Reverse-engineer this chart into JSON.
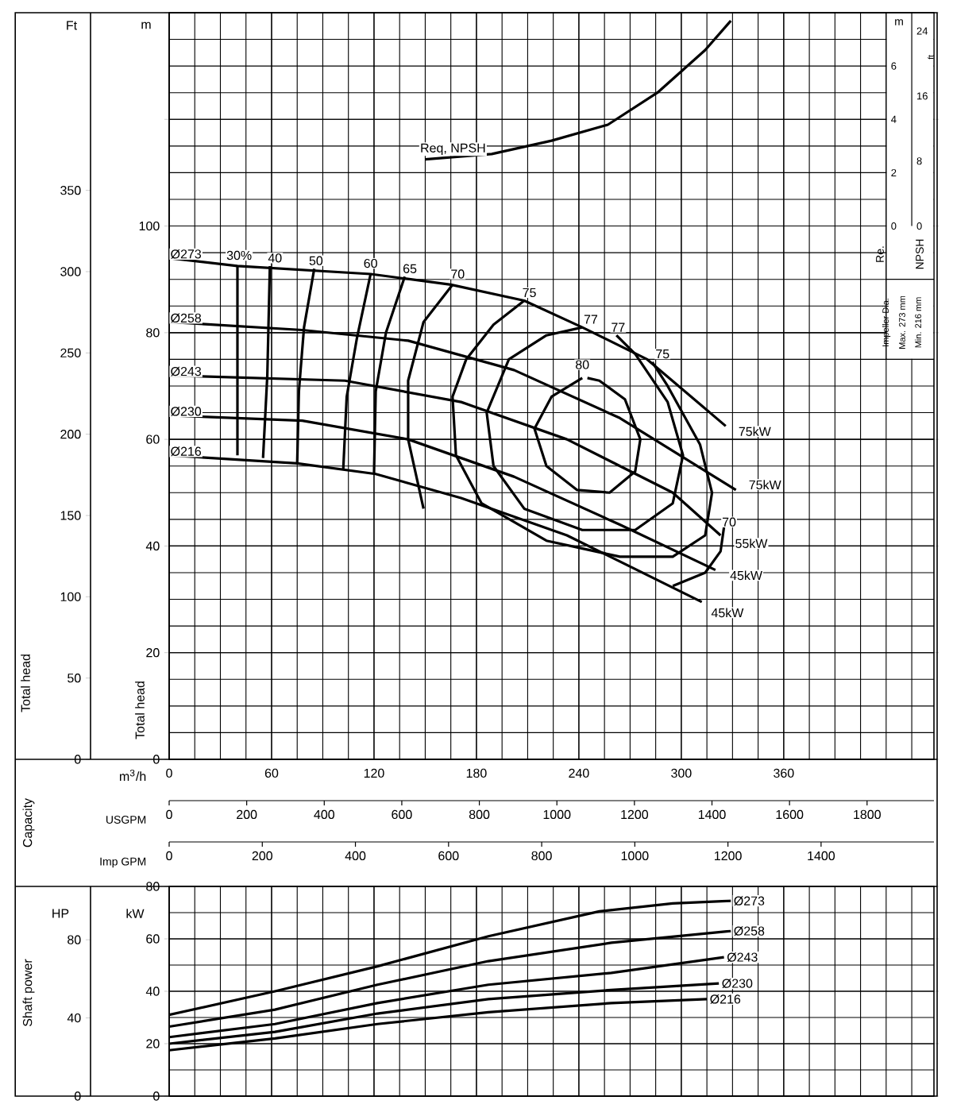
{
  "chart_data": [
    {
      "type": "line",
      "xlabel": "m$^{3}$/h",
      "ylabel": "Total head",
      "y2label": "Total head",
      "xlim": [
        0,
        448
      ],
      "xticks": [
        0,
        60,
        120,
        180,
        240,
        300,
        360
      ],
      "ylim": [
        0,
        140
      ],
      "yticks": [
        0,
        20,
        40,
        60,
        80,
        100,
        {
          "value": 120,
          "label": null
        },
        {
          "value": 140,
          "label": null
        }
      ],
      "y2lim": [
        0,
        459.3
      ],
      "y2ticks": [
        0,
        50,
        100,
        150,
        200,
        250,
        300,
        350
      ],
      "grid": true,
      "x2label": "USGPM",
      "x2lim": [
        0,
        1972.5
      ],
      "x2ticks": [
        0,
        200,
        400,
        600,
        800,
        1000,
        1200,
        1400,
        1600,
        1800
      ],
      "annotations": [
        "Ft",
        "m",
        "Impeller Dia.",
        "Max. 273 mm",
        "Min. 216 mm",
        "Capacity",
        {
          "text": "30%",
          "x": 41,
          "y": 94.5
        },
        {
          "text": "40",
          "x": 62,
          "y": 94
        },
        {
          "text": "50",
          "x": 86,
          "y": 93.5
        },
        {
          "text": "60",
          "x": 118,
          "y": 93
        },
        {
          "text": "65",
          "x": 141,
          "y": 92
        },
        {
          "text": "70",
          "x": 169,
          "y": 91
        },
        {
          "text": "75",
          "x": 211,
          "y": 87.5
        },
        {
          "text": "77",
          "x": 247,
          "y": 82.5
        },
        {
          "text": "77",
          "x": 263,
          "y": 81
        },
        {
          "text": "75",
          "x": 289,
          "y": 76
        },
        {
          "text": "80",
          "x": 242,
          "y": 74
        },
        {
          "text": "70",
          "x": 328,
          "y": 44.5
        },
        {
          "text": "75kW",
          "x": 343,
          "y": 61.5
        },
        {
          "text": "75kW",
          "x": 349,
          "y": 51.5
        },
        {
          "text": "55kW",
          "x": 341,
          "y": 40.5
        },
        {
          "text": "45kW",
          "x": 338,
          "y": 34.5
        },
        {
          "text": "45kW",
          "x": 327,
          "y": 27.5
        }
      ],
      "series": [
        {
          "name": "Ø273",
          "color": "#000000",
          "x": [
            0,
            40,
            118,
            165,
            208,
            242,
            280,
            326
          ],
          "values": [
            94,
            92.5,
            91,
            89,
            86,
            81,
            75,
            62.5
          ]
        },
        {
          "name": "Ø258",
          "color": "#000000",
          "x": [
            0,
            78,
            140,
            202,
            264,
            332
          ],
          "values": [
            82,
            80.5,
            78.5,
            73,
            64,
            50.5
          ]
        },
        {
          "name": "Ø243",
          "color": "#000000",
          "x": [
            0,
            103,
            171,
            233,
            295,
            323
          ],
          "values": [
            72,
            71,
            67,
            60,
            50,
            42
          ]
        },
        {
          "name": "Ø230",
          "color": "#000000",
          "x": [
            0,
            78,
            140,
            202,
            264,
            320
          ],
          "values": [
            64.5,
            63.5,
            60,
            53,
            44,
            35.5
          ]
        },
        {
          "name": "Ø216",
          "color": "#000000",
          "x": [
            0,
            75,
            121,
            171,
            233,
            312
          ],
          "values": [
            57,
            55.5,
            53.5,
            49,
            42,
            29.5
          ]
        },
        {
          "color": "#000000",
          "x": [
            40,
            40
          ],
          "values": [
            92.5,
            57
          ]
        },
        {
          "color": "#000000",
          "x": [
            59,
            57.5,
            55
          ],
          "values": [
            92.5,
            72,
            56.5
          ]
        },
        {
          "color": "#000000",
          "x": [
            85,
            79,
            76,
            75
          ],
          "values": [
            92,
            81,
            69,
            55.5
          ]
        },
        {
          "color": "#000000",
          "x": [
            118,
            110,
            104,
            102
          ],
          "values": [
            91,
            79,
            68,
            54.5
          ]
        },
        {
          "color": "#000000",
          "x": [
            138,
            127,
            121,
            120
          ],
          "values": [
            90.5,
            80,
            69,
            53.5
          ]
        },
        {
          "color": "#000000",
          "x": [
            166,
            149,
            140,
            140,
            149
          ],
          "values": [
            89,
            82,
            71,
            60,
            47
          ]
        },
        {
          "color": "#000000",
          "x": [
            325,
            323,
            314,
            295
          ],
          "values": [
            43.5,
            39,
            35,
            32.5
          ]
        },
        {
          "color": "#000000",
          "x": [
            208,
            190,
            174,
            166,
            168,
            183,
            221,
            264,
            295,
            314,
            318,
            311,
            292,
            283
          ],
          "values": [
            86,
            81.5,
            75,
            68,
            57,
            48,
            41,
            38,
            38,
            42,
            50,
            59,
            70,
            74.5
          ]
        },
        {
          "color": "#000000",
          "x": [
            242,
            221,
            199,
            186,
            190,
            208,
            242,
            273,
            295,
            301,
            292,
            273,
            262
          ],
          "values": [
            81,
            79.5,
            75,
            65,
            55,
            47,
            43,
            43,
            48,
            57,
            67,
            76,
            79.5
          ]
        },
        {
          "color": "#000000",
          "x": [
            242,
            224,
            214,
            221,
            239,
            258,
            273,
            276,
            267,
            252,
            245
          ],
          "values": [
            71.5,
            68,
            62,
            55,
            50.5,
            50,
            54,
            60,
            67.5,
            71,
            71.5
          ]
        }
      ]
    },
    {
      "type": "line",
      "ylabel": "Re.",
      "y2label": "NPSH",
      "xlim": [
        0,
        448
      ],
      "tick_labels": "y",
      "ylim": [
        0,
        8
      ],
      "yticks": [
        0,
        2,
        4,
        6
      ],
      "y2lim": [
        0,
        26.25
      ],
      "y2ticks": [
        0,
        8,
        16,
        24
      ],
      "annotations": [
        "m",
        "ft"
      ],
      "series": [
        {
          "name": "Req, NPSH",
          "color": "#000000",
          "x": [
            150,
            189,
            224,
            257,
            286,
            314,
            329
          ],
          "values": [
            2.5,
            2.7,
            3.2,
            3.8,
            5,
            6.6,
            7.7
          ]
        }
      ]
    },
    {
      "type": "line",
      "y2label": "Shaft power",
      "x2label": "Imp GPM",
      "x2lim": [
        0,
        1642.4
      ],
      "x2ticks": [
        0,
        200,
        400,
        600,
        800,
        1000,
        1200,
        1400
      ],
      "xlim": [
        0,
        448
      ],
      "xticks": [
        0,
        60,
        120,
        180,
        240,
        300,
        360
      ],
      "tick_labels": "y",
      "ylim": [
        0,
        80
      ],
      "yticks": [
        0,
        20,
        40,
        60,
        80
      ],
      "y2lim": [
        0,
        107.3
      ],
      "y2ticks": [
        0,
        40,
        80
      ],
      "grid": true,
      "annotations": [
        "HP",
        "kW"
      ],
      "series": [
        {
          "name": "Ø273",
          "color": "#000000",
          "x": [
            0,
            62,
            122,
            187,
            252,
            295,
            329
          ],
          "values": [
            31,
            40,
            49.5,
            61,
            70.5,
            73.5,
            74.5
          ]
        },
        {
          "name": "Ø258",
          "color": "#000000",
          "x": [
            0,
            62,
            122,
            187,
            259,
            329
          ],
          "values": [
            26.5,
            33,
            42.5,
            51.5,
            58.5,
            63
          ]
        },
        {
          "name": "Ø243",
          "color": "#000000",
          "x": [
            0,
            62,
            122,
            187,
            259,
            325
          ],
          "values": [
            22.5,
            27.5,
            35.5,
            42.5,
            47,
            53
          ]
        },
        {
          "name": "Ø230",
          "color": "#000000",
          "x": [
            0,
            62,
            122,
            187,
            259,
            322
          ],
          "values": [
            20,
            24.5,
            31.5,
            37,
            40.5,
            43
          ]
        },
        {
          "name": "Ø216",
          "color": "#000000",
          "x": [
            0,
            62,
            122,
            187,
            259,
            315
          ],
          "values": [
            17.5,
            22,
            27.5,
            32,
            35.5,
            37
          ]
        }
      ]
    }
  ]
}
